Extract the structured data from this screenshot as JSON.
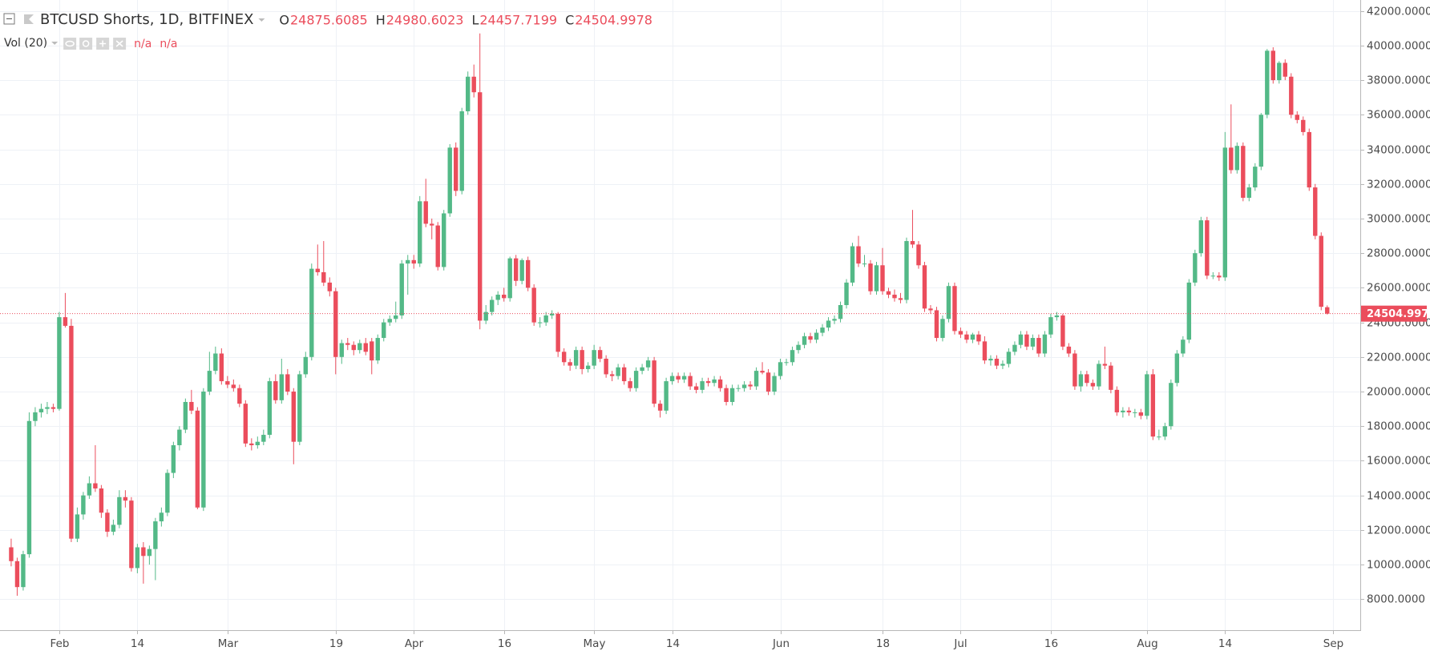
{
  "chart_data": {
    "type": "candlestick",
    "title": "BTCUSD Shorts, 1D, BITFINEX",
    "ohlc_labels": [
      "O",
      "H",
      "L",
      "C"
    ],
    "indicator": "Vol (20)",
    "indicator_values": [
      "n/a",
      "n/a"
    ],
    "colors": {
      "up": "#53b987",
      "down": "#eb4d5c"
    },
    "grid": true,
    "xlim": [
      -1.86,
      224.5
    ],
    "ylim": [
      6210,
      42632
    ],
    "xticks": [
      {
        "value": 8,
        "label": "Feb"
      },
      {
        "value": 21,
        "label": "14"
      },
      {
        "value": 36,
        "label": "Mar"
      },
      {
        "value": 54,
        "label": "19"
      },
      {
        "value": 67,
        "label": "Apr"
      },
      {
        "value": 82,
        "label": "16"
      },
      {
        "value": 97,
        "label": "May"
      },
      {
        "value": 110,
        "label": "14"
      },
      {
        "value": 128,
        "label": "Jun"
      },
      {
        "value": 145,
        "label": "18"
      },
      {
        "value": 158,
        "label": "Jul"
      },
      {
        "value": 173,
        "label": "16"
      },
      {
        "value": 189,
        "label": "Aug"
      },
      {
        "value": 202,
        "label": "14"
      },
      {
        "value": 220,
        "label": "Sep"
      }
    ],
    "yticks": [
      {
        "value": 42000,
        "label": "42000.0000"
      },
      {
        "value": 40000,
        "label": "40000.0000"
      },
      {
        "value": 38000,
        "label": "38000.0000"
      },
      {
        "value": 36000,
        "label": "36000.0000"
      },
      {
        "value": 34000,
        "label": "34000.0000"
      },
      {
        "value": 32000,
        "label": "32000.0000"
      },
      {
        "value": 30000,
        "label": "30000.0000"
      },
      {
        "value": 28000,
        "label": "28000.0000"
      },
      {
        "value": 26000,
        "label": "26000.0000"
      },
      {
        "value": 24000,
        "label": "24000.0000"
      },
      {
        "value": 22000,
        "label": "22000.0000"
      },
      {
        "value": 20000,
        "label": "20000.0000"
      },
      {
        "value": 18000,
        "label": "18000.0000"
      },
      {
        "value": 16000,
        "label": "16000.0000"
      },
      {
        "value": 14000,
        "label": "14000.0000"
      },
      {
        "value": 12000,
        "label": "12000.0000"
      },
      {
        "value": 10000,
        "label": "10000.0000"
      },
      {
        "value": 8000,
        "label": "8000.0000"
      }
    ],
    "ohlc": [
      [
        11000,
        11500,
        9900,
        10200
      ],
      [
        10200,
        10400,
        8200,
        8700
      ],
      [
        8700,
        10800,
        8500,
        10600
      ],
      [
        10600,
        18800,
        10400,
        18300
      ],
      [
        18300,
        19100,
        18000,
        18800
      ],
      [
        18800,
        19300,
        18500,
        19000
      ],
      [
        19000,
        19400,
        18700,
        19100
      ],
      [
        19100,
        19300,
        18800,
        19000
      ],
      [
        19000,
        24600,
        18900,
        24300
      ],
      [
        24300,
        25700,
        23700,
        23800
      ],
      [
        23800,
        24200,
        11300,
        11500
      ],
      [
        11500,
        13300,
        11300,
        12900
      ],
      [
        12900,
        14200,
        12600,
        14000
      ],
      [
        14000,
        15100,
        13800,
        14700
      ],
      [
        14700,
        16900,
        14200,
        14400
      ],
      [
        14400,
        14600,
        12700,
        13000
      ],
      [
        13000,
        13200,
        11600,
        11900
      ],
      [
        11900,
        12600,
        11700,
        12300
      ],
      [
        12300,
        14300,
        12100,
        13900
      ],
      [
        13900,
        14300,
        13300,
        13700
      ],
      [
        13700,
        13900,
        9600,
        9800
      ],
      [
        9800,
        11200,
        9500,
        11000
      ],
      [
        11000,
        11300,
        8900,
        10500
      ],
      [
        10500,
        11100,
        10000,
        10900
      ],
      [
        10900,
        12700,
        9100,
        12500
      ],
      [
        12500,
        13300,
        12200,
        13000
      ],
      [
        13000,
        15500,
        12800,
        15300
      ],
      [
        15300,
        17100,
        15000,
        16900
      ],
      [
        16900,
        18000,
        16600,
        17800
      ],
      [
        17800,
        19600,
        17600,
        19400
      ],
      [
        19400,
        20100,
        18700,
        18900
      ],
      [
        18900,
        19100,
        13200,
        13300
      ],
      [
        13300,
        20200,
        13100,
        20000
      ],
      [
        20000,
        22300,
        19800,
        21200
      ],
      [
        21200,
        22600,
        21000,
        22200
      ],
      [
        22200,
        22500,
        20400,
        20600
      ],
      [
        20600,
        20900,
        20200,
        20400
      ],
      [
        20400,
        20700,
        20000,
        20200
      ],
      [
        20200,
        20400,
        19100,
        19300
      ],
      [
        19300,
        19500,
        16800,
        17000
      ],
      [
        17000,
        17300,
        16600,
        16900
      ],
      [
        16900,
        17400,
        16700,
        17100
      ],
      [
        17100,
        17800,
        16900,
        17500
      ],
      [
        17500,
        20800,
        17300,
        20600
      ],
      [
        20600,
        21000,
        19300,
        19500
      ],
      [
        19500,
        21900,
        19300,
        21000
      ],
      [
        21000,
        21300,
        19800,
        20000
      ],
      [
        20000,
        20200,
        15800,
        17100
      ],
      [
        17100,
        21200,
        16900,
        21000
      ],
      [
        21000,
        22300,
        20800,
        22000
      ],
      [
        22000,
        27400,
        21800,
        27100
      ],
      [
        27100,
        28500,
        26700,
        26900
      ],
      [
        26900,
        28700,
        26100,
        26300
      ],
      [
        26300,
        26600,
        25500,
        25800
      ],
      [
        25800,
        26000,
        21000,
        22000
      ],
      [
        22000,
        23000,
        21600,
        22800
      ],
      [
        22800,
        23100,
        22400,
        22700
      ],
      [
        22700,
        22900,
        22100,
        22400
      ],
      [
        22400,
        23000,
        22200,
        22800
      ],
      [
        22800,
        23100,
        22100,
        22300
      ],
      [
        22900,
        23100,
        21000,
        21800
      ],
      [
        21800,
        23300,
        21600,
        23100
      ],
      [
        23100,
        24200,
        22900,
        24000
      ],
      [
        24000,
        24400,
        23800,
        24200
      ],
      [
        24200,
        25200,
        24000,
        24400
      ],
      [
        24400,
        27600,
        24200,
        27400
      ],
      [
        27400,
        27900,
        25600,
        27600
      ],
      [
        27600,
        27900,
        27100,
        27400
      ],
      [
        27400,
        31300,
        27200,
        31000
      ],
      [
        31000,
        32300,
        29500,
        29700
      ],
      [
        29700,
        30000,
        28800,
        29600
      ],
      [
        29600,
        29800,
        27000,
        27200
      ],
      [
        27200,
        30500,
        27000,
        30300
      ],
      [
        30300,
        34300,
        30100,
        34100
      ],
      [
        34100,
        34400,
        31300,
        31600
      ],
      [
        31600,
        36400,
        31400,
        36200
      ],
      [
        36200,
        38500,
        36000,
        38200
      ],
      [
        38200,
        38900,
        37000,
        37300
      ],
      [
        37300,
        40700,
        23600,
        24100
      ],
      [
        24100,
        25000,
        23900,
        24600
      ],
      [
        24600,
        25500,
        24400,
        25300
      ],
      [
        25300,
        25800,
        25000,
        25600
      ],
      [
        25600,
        26000,
        25200,
        25400
      ],
      [
        25400,
        27800,
        25200,
        27700
      ],
      [
        27700,
        27900,
        26100,
        26400
      ],
      [
        26400,
        27700,
        26200,
        27600
      ],
      [
        27600,
        27800,
        25800,
        26000
      ],
      [
        26000,
        26200,
        23800,
        24000
      ],
      [
        24000,
        24300,
        23700,
        24000
      ],
      [
        24000,
        24600,
        23800,
        24400
      ],
      [
        24400,
        24700,
        24200,
        24500
      ],
      [
        24500,
        24600,
        22000,
        22300
      ],
      [
        22300,
        22500,
        21500,
        21700
      ],
      [
        21700,
        21900,
        21200,
        21500
      ],
      [
        21500,
        22600,
        21300,
        22400
      ],
      [
        22400,
        22600,
        21000,
        21300
      ],
      [
        21300,
        21700,
        21100,
        21500
      ],
      [
        21500,
        22700,
        21300,
        22400
      ],
      [
        22400,
        22600,
        21700,
        21900
      ],
      [
        21900,
        22100,
        20800,
        21000
      ],
      [
        21000,
        21200,
        20600,
        20900
      ],
      [
        20900,
        21600,
        20700,
        21400
      ],
      [
        21400,
        21600,
        20400,
        20600
      ],
      [
        20600,
        20800,
        20000,
        20200
      ],
      [
        20200,
        21400,
        20000,
        21200
      ],
      [
        21200,
        21600,
        21000,
        21400
      ],
      [
        21400,
        22000,
        21200,
        21800
      ],
      [
        21800,
        22000,
        19100,
        19300
      ],
      [
        19300,
        19500,
        18500,
        18900
      ],
      [
        18900,
        20800,
        18700,
        20600
      ],
      [
        20600,
        21100,
        20400,
        20900
      ],
      [
        20900,
        21100,
        20500,
        20700
      ],
      [
        20700,
        21100,
        20500,
        20900
      ],
      [
        20900,
        21100,
        20100,
        20300
      ],
      [
        20300,
        20500,
        19900,
        20100
      ],
      [
        20100,
        20800,
        19900,
        20600
      ],
      [
        20600,
        20800,
        20300,
        20500
      ],
      [
        20500,
        20900,
        20300,
        20700
      ],
      [
        20700,
        20900,
        20000,
        20200
      ],
      [
        20200,
        20400,
        19200,
        19400
      ],
      [
        19400,
        20400,
        19200,
        20200
      ],
      [
        20200,
        20400,
        20000,
        20200
      ],
      [
        20200,
        20600,
        20000,
        20400
      ],
      [
        20400,
        20600,
        20100,
        20300
      ],
      [
        20300,
        21400,
        20100,
        21200
      ],
      [
        21200,
        21700,
        21000,
        21100
      ],
      [
        21100,
        21300,
        19800,
        20000
      ],
      [
        20000,
        21100,
        19800,
        20900
      ],
      [
        20900,
        21900,
        20700,
        21700
      ],
      [
        21700,
        21900,
        21500,
        21700
      ],
      [
        21700,
        22600,
        21500,
        22400
      ],
      [
        22400,
        22900,
        22200,
        22700
      ],
      [
        22700,
        23400,
        22500,
        23200
      ],
      [
        23200,
        23400,
        22800,
        23000
      ],
      [
        23000,
        23600,
        22800,
        23400
      ],
      [
        23400,
        23900,
        23200,
        23700
      ],
      [
        23700,
        24300,
        23500,
        24100
      ],
      [
        24100,
        24400,
        23900,
        24200
      ],
      [
        24200,
        25200,
        24000,
        25000
      ],
      [
        25000,
        26500,
        24800,
        26300
      ],
      [
        26300,
        28600,
        26100,
        28400
      ],
      [
        28400,
        29000,
        27200,
        27400
      ],
      [
        27400,
        27900,
        27200,
        27400
      ],
      [
        27400,
        27600,
        25600,
        25800
      ],
      [
        25800,
        27500,
        25600,
        27300
      ],
      [
        27300,
        28300,
        25600,
        25800
      ],
      [
        25800,
        26000,
        25400,
        25600
      ],
      [
        25600,
        25900,
        25200,
        25400
      ],
      [
        25400,
        25700,
        25100,
        25300
      ],
      [
        25300,
        28900,
        25100,
        28700
      ],
      [
        28700,
        30500,
        28300,
        28500
      ],
      [
        28500,
        28700,
        27100,
        27300
      ],
      [
        27300,
        27500,
        24600,
        24800
      ],
      [
        24800,
        25000,
        24500,
        24700
      ],
      [
        24700,
        24900,
        22900,
        23100
      ],
      [
        23100,
        24400,
        22900,
        24200
      ],
      [
        24200,
        26300,
        24000,
        26100
      ],
      [
        26100,
        26300,
        23300,
        23500
      ],
      [
        23500,
        23700,
        23100,
        23300
      ],
      [
        23300,
        23500,
        22800,
        23000
      ],
      [
        23000,
        23400,
        22800,
        23300
      ],
      [
        23300,
        23500,
        22700,
        22900
      ],
      [
        22900,
        23200,
        21600,
        21800
      ],
      [
        21800,
        22100,
        21500,
        21900
      ],
      [
        21900,
        22100,
        21300,
        21500
      ],
      [
        21500,
        21800,
        21300,
        21600
      ],
      [
        21600,
        22500,
        21400,
        22300
      ],
      [
        22300,
        22900,
        22100,
        22700
      ],
      [
        22700,
        23500,
        22500,
        23300
      ],
      [
        23300,
        23500,
        22400,
        22600
      ],
      [
        22600,
        23300,
        22400,
        23100
      ],
      [
        23100,
        23300,
        22000,
        22200
      ],
      [
        22200,
        23500,
        22000,
        23300
      ],
      [
        23300,
        24500,
        23100,
        24300
      ],
      [
        24300,
        24600,
        24100,
        24400
      ],
      [
        24400,
        24500,
        22400,
        22600
      ],
      [
        22600,
        22800,
        22000,
        22200
      ],
      [
        22200,
        22400,
        20100,
        20300
      ],
      [
        20300,
        21200,
        20000,
        21000
      ],
      [
        21000,
        21200,
        20300,
        20500
      ],
      [
        20500,
        20700,
        20100,
        20300
      ],
      [
        20300,
        21800,
        20100,
        21600
      ],
      [
        21600,
        22600,
        21300,
        21500
      ],
      [
        21500,
        21700,
        19900,
        20100
      ],
      [
        20100,
        20300,
        18600,
        18800
      ],
      [
        18800,
        19100,
        18500,
        18900
      ],
      [
        18900,
        19100,
        18600,
        18800
      ],
      [
        18800,
        19000,
        18500,
        18800
      ],
      [
        18800,
        19000,
        18400,
        18600
      ],
      [
        18600,
        21200,
        18400,
        21000
      ],
      [
        21000,
        21300,
        17200,
        17400
      ],
      [
        17400,
        17800,
        17200,
        17400
      ],
      [
        17400,
        18200,
        17200,
        18000
      ],
      [
        18000,
        20700,
        17800,
        20500
      ],
      [
        20500,
        22400,
        20300,
        22200
      ],
      [
        22200,
        23200,
        22000,
        23000
      ],
      [
        23000,
        26500,
        22800,
        26300
      ],
      [
        26300,
        28200,
        26100,
        28000
      ],
      [
        28000,
        30100,
        27800,
        29900
      ],
      [
        29900,
        30100,
        26500,
        26700
      ],
      [
        26700,
        26900,
        26500,
        26700
      ],
      [
        26700,
        26900,
        26400,
        26600
      ],
      [
        26600,
        35000,
        26400,
        34100
      ],
      [
        34100,
        36600,
        32600,
        32800
      ],
      [
        32800,
        34400,
        32600,
        34200
      ],
      [
        34200,
        34400,
        31000,
        31200
      ],
      [
        31200,
        32000,
        31000,
        31800
      ],
      [
        31800,
        33200,
        31600,
        33000
      ],
      [
        33000,
        36100,
        32800,
        36000
      ],
      [
        36000,
        39800,
        35800,
        39700
      ],
      [
        39700,
        39900,
        37800,
        38000
      ],
      [
        38000,
        39100,
        37800,
        39000
      ],
      [
        39000,
        39200,
        38000,
        38200
      ],
      [
        38200,
        38400,
        35800,
        36000
      ],
      [
        36000,
        36200,
        35500,
        35700
      ],
      [
        35700,
        35900,
        34800,
        35000
      ],
      [
        35000,
        35200,
        31600,
        31800
      ],
      [
        31800,
        32000,
        28800,
        29000
      ],
      [
        29000,
        29200,
        24700,
        24900
      ],
      [
        24875.6085,
        24980.6023,
        24457.7199,
        24504.9978
      ]
    ]
  }
}
